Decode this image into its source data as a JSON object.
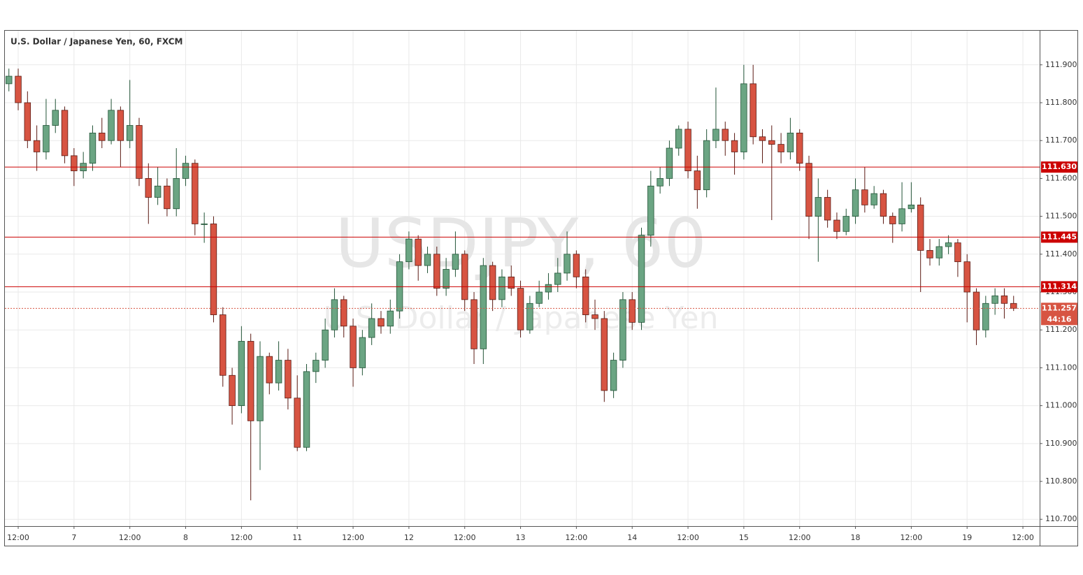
{
  "chart_data": {
    "type": "candlestick",
    "title": "U.S. Dollar / Japanese Yen, 60, FXCM",
    "watermark": "USDJPY, 60",
    "watermark_subtitle": "U.S. Dollar / Japanese Yen",
    "up_color": "#6ba583",
    "down_color": "#d75442",
    "up_border": "#225437",
    "down_border": "#5b1a13",
    "grid": true,
    "xlim": [
      -2.86,
      219.6
    ],
    "xticks": [
      {
        "value": 0,
        "label": "12:00"
      },
      {
        "value": 12,
        "label": "7"
      },
      {
        "value": 24,
        "label": "12:00"
      },
      {
        "value": 36,
        "label": "8"
      },
      {
        "value": 48,
        "label": "12:00"
      },
      {
        "value": 60,
        "label": "11"
      },
      {
        "value": 72,
        "label": "12:00"
      },
      {
        "value": 84,
        "label": "12"
      },
      {
        "value": 96,
        "label": "12:00"
      },
      {
        "value": 108,
        "label": "13"
      },
      {
        "value": 120,
        "label": "12:00"
      },
      {
        "value": 132,
        "label": "14"
      },
      {
        "value": 144,
        "label": "12:00"
      },
      {
        "value": 156,
        "label": "15"
      },
      {
        "value": 168,
        "label": "12:00"
      },
      {
        "value": 180,
        "label": "18"
      },
      {
        "value": 192,
        "label": "12:00"
      },
      {
        "value": 204,
        "label": "19"
      },
      {
        "value": 216,
        "label": "12:00"
      }
    ],
    "ylim": [
      110.682,
      111.99
    ],
    "yticks": [
      {
        "value": 110.7,
        "label": "110.700"
      },
      {
        "value": 110.8,
        "label": "110.800"
      },
      {
        "value": 110.9,
        "label": "110.900"
      },
      {
        "value": 111.0,
        "label": "111.000"
      },
      {
        "value": 111.1,
        "label": "111.100"
      },
      {
        "value": 111.2,
        "label": "111.200"
      },
      {
        "value": 111.3,
        "label": "111.300"
      },
      {
        "value": 111.4,
        "label": "111.400"
      },
      {
        "value": 111.5,
        "label": "111.500"
      },
      {
        "value": 111.6,
        "label": "111.600"
      },
      {
        "value": 111.7,
        "label": "111.700"
      },
      {
        "value": 111.8,
        "label": "111.800"
      },
      {
        "value": 111.9,
        "label": "111.900"
      }
    ],
    "hlines": [
      {
        "value": 111.63,
        "label": "111.630"
      },
      {
        "value": 111.445,
        "label": "111.445"
      },
      {
        "value": 111.314,
        "label": "111.314"
      }
    ],
    "hline_color": "#cc0000",
    "current_price": {
      "value": 111.257,
      "label": "111.257"
    },
    "countdown": "44:16",
    "x": [
      -2,
      0,
      2,
      4,
      6,
      8,
      10,
      12,
      14,
      16,
      18,
      20,
      22,
      24,
      26,
      28,
      30,
      32,
      34,
      36,
      38,
      40,
      42,
      44,
      46,
      48,
      50,
      52,
      54,
      56,
      58,
      60,
      62,
      64,
      66,
      68,
      70,
      72,
      74,
      76,
      78,
      80,
      82,
      84,
      86,
      88,
      90,
      92,
      94,
      96,
      98,
      100,
      102,
      104,
      106,
      108,
      110,
      112,
      114,
      116,
      118,
      120,
      122,
      124,
      126,
      128,
      130,
      132,
      134,
      136,
      138,
      140,
      142,
      144,
      146,
      148,
      150,
      152,
      154,
      156,
      158,
      160,
      162,
      164,
      166,
      168,
      170,
      172,
      174,
      176,
      178,
      180,
      182,
      184,
      186,
      188,
      190,
      192,
      194,
      196,
      198,
      200,
      202,
      204,
      206,
      208,
      210,
      212,
      214
    ],
    "values": [
      [
        111.85,
        111.89,
        111.83,
        111.87
      ],
      [
        111.87,
        111.89,
        111.78,
        111.8
      ],
      [
        111.8,
        111.83,
        111.68,
        111.7
      ],
      [
        111.7,
        111.74,
        111.62,
        111.67
      ],
      [
        111.67,
        111.81,
        111.65,
        111.74
      ],
      [
        111.74,
        111.81,
        111.72,
        111.78
      ],
      [
        111.78,
        111.79,
        111.64,
        111.66
      ],
      [
        111.66,
        111.68,
        111.58,
        111.62
      ],
      [
        111.62,
        111.67,
        111.6,
        111.64
      ],
      [
        111.64,
        111.74,
        111.62,
        111.72
      ],
      [
        111.72,
        111.76,
        111.68,
        111.7
      ],
      [
        111.7,
        111.81,
        111.69,
        111.78
      ],
      [
        111.78,
        111.79,
        111.63,
        111.7
      ],
      [
        111.7,
        111.86,
        111.68,
        111.74
      ],
      [
        111.74,
        111.76,
        111.58,
        111.6
      ],
      [
        111.6,
        111.64,
        111.48,
        111.55
      ],
      [
        111.55,
        111.63,
        111.53,
        111.58
      ],
      [
        111.58,
        111.6,
        111.5,
        111.52
      ],
      [
        111.52,
        111.68,
        111.5,
        111.6
      ],
      [
        111.6,
        111.66,
        111.58,
        111.64
      ],
      [
        111.64,
        111.65,
        111.45,
        111.48
      ],
      [
        111.48,
        111.51,
        111.43,
        111.48
      ],
      [
        111.48,
        111.5,
        111.22,
        111.24
      ],
      [
        111.24,
        111.26,
        111.05,
        111.08
      ],
      [
        111.08,
        111.1,
        110.95,
        111.0
      ],
      [
        111.0,
        111.21,
        110.98,
        111.17
      ],
      [
        111.17,
        111.19,
        110.75,
        110.96
      ],
      [
        110.96,
        111.17,
        110.83,
        111.13
      ],
      [
        111.13,
        111.14,
        111.03,
        111.06
      ],
      [
        111.06,
        111.17,
        111.04,
        111.12
      ],
      [
        111.12,
        111.15,
        110.99,
        111.02
      ],
      [
        111.02,
        111.08,
        110.88,
        110.89
      ],
      [
        110.89,
        111.11,
        110.88,
        111.09
      ],
      [
        111.09,
        111.14,
        111.06,
        111.12
      ],
      [
        111.12,
        111.23,
        111.1,
        111.2
      ],
      [
        111.2,
        111.31,
        111.18,
        111.28
      ],
      [
        111.28,
        111.29,
        111.18,
        111.21
      ],
      [
        111.21,
        111.23,
        111.05,
        111.1
      ],
      [
        111.1,
        111.2,
        111.08,
        111.18
      ],
      [
        111.18,
        111.27,
        111.16,
        111.23
      ],
      [
        111.23,
        111.25,
        111.19,
        111.21
      ],
      [
        111.21,
        111.28,
        111.19,
        111.25
      ],
      [
        111.25,
        111.4,
        111.23,
        111.38
      ],
      [
        111.38,
        111.46,
        111.36,
        111.44
      ],
      [
        111.44,
        111.45,
        111.33,
        111.37
      ],
      [
        111.37,
        111.42,
        111.35,
        111.4
      ],
      [
        111.4,
        111.42,
        111.29,
        111.31
      ],
      [
        111.31,
        111.39,
        111.29,
        111.36
      ],
      [
        111.36,
        111.46,
        111.34,
        111.4
      ],
      [
        111.4,
        111.41,
        111.25,
        111.28
      ],
      [
        111.28,
        111.3,
        111.11,
        111.15
      ],
      [
        111.15,
        111.39,
        111.11,
        111.37
      ],
      [
        111.37,
        111.38,
        111.25,
        111.28
      ],
      [
        111.28,
        111.36,
        111.26,
        111.34
      ],
      [
        111.34,
        111.37,
        111.29,
        111.31
      ],
      [
        111.31,
        111.33,
        111.18,
        111.2
      ],
      [
        111.2,
        111.29,
        111.19,
        111.27
      ],
      [
        111.27,
        111.33,
        111.26,
        111.3
      ],
      [
        111.3,
        111.35,
        111.28,
        111.32
      ],
      [
        111.32,
        111.39,
        111.3,
        111.35
      ],
      [
        111.35,
        111.46,
        111.33,
        111.4
      ],
      [
        111.4,
        111.41,
        111.31,
        111.34
      ],
      [
        111.34,
        111.36,
        111.22,
        111.24
      ],
      [
        111.24,
        111.28,
        111.2,
        111.23
      ],
      [
        111.23,
        111.25,
        111.01,
        111.04
      ],
      [
        111.04,
        111.14,
        111.02,
        111.12
      ],
      [
        111.12,
        111.3,
        111.1,
        111.28
      ],
      [
        111.28,
        111.3,
        111.2,
        111.22
      ],
      [
        111.22,
        111.47,
        111.2,
        111.45
      ],
      [
        111.45,
        111.62,
        111.42,
        111.58
      ],
      [
        111.58,
        111.63,
        111.56,
        111.6
      ],
      [
        111.6,
        111.7,
        111.58,
        111.68
      ],
      [
        111.68,
        111.74,
        111.66,
        111.73
      ],
      [
        111.73,
        111.75,
        111.6,
        111.62
      ],
      [
        111.62,
        111.66,
        111.52,
        111.57
      ],
      [
        111.57,
        111.73,
        111.55,
        111.7
      ],
      [
        111.7,
        111.84,
        111.68,
        111.73
      ],
      [
        111.73,
        111.75,
        111.66,
        111.7
      ],
      [
        111.7,
        111.72,
        111.61,
        111.67
      ],
      [
        111.67,
        111.9,
        111.65,
        111.85
      ],
      [
        111.85,
        111.9,
        111.69,
        111.71
      ],
      [
        111.71,
        111.73,
        111.64,
        111.7
      ],
      [
        111.7,
        111.74,
        111.49,
        111.69
      ],
      [
        111.69,
        111.72,
        111.64,
        111.67
      ],
      [
        111.67,
        111.76,
        111.65,
        111.72
      ],
      [
        111.72,
        111.73,
        111.62,
        111.64
      ],
      [
        111.64,
        111.66,
        111.44,
        111.5
      ],
      [
        111.5,
        111.6,
        111.38,
        111.55
      ],
      [
        111.55,
        111.57,
        111.47,
        111.49
      ],
      [
        111.49,
        111.51,
        111.44,
        111.46
      ],
      [
        111.46,
        111.52,
        111.45,
        111.5
      ],
      [
        111.5,
        111.6,
        111.48,
        111.57
      ],
      [
        111.57,
        111.63,
        111.51,
        111.53
      ],
      [
        111.53,
        111.58,
        111.52,
        111.56
      ],
      [
        111.56,
        111.57,
        111.48,
        111.5
      ],
      [
        111.5,
        111.51,
        111.43,
        111.48
      ],
      [
        111.48,
        111.59,
        111.46,
        111.52
      ],
      [
        111.52,
        111.59,
        111.51,
        111.53
      ],
      [
        111.53,
        111.55,
        111.3,
        111.41
      ],
      [
        111.41,
        111.44,
        111.37,
        111.39
      ],
      [
        111.39,
        111.44,
        111.37,
        111.42
      ],
      [
        111.42,
        111.45,
        111.4,
        111.43
      ],
      [
        111.43,
        111.44,
        111.34,
        111.38
      ],
      [
        111.38,
        111.4,
        111.22,
        111.3
      ],
      [
        111.3,
        111.31,
        111.16,
        111.2
      ],
      [
        111.2,
        111.29,
        111.18,
        111.27
      ],
      [
        111.27,
        111.31,
        111.24,
        111.29
      ],
      [
        111.29,
        111.31,
        111.23,
        111.27
      ],
      [
        111.27,
        111.29,
        111.25,
        111.257
      ]
    ]
  }
}
